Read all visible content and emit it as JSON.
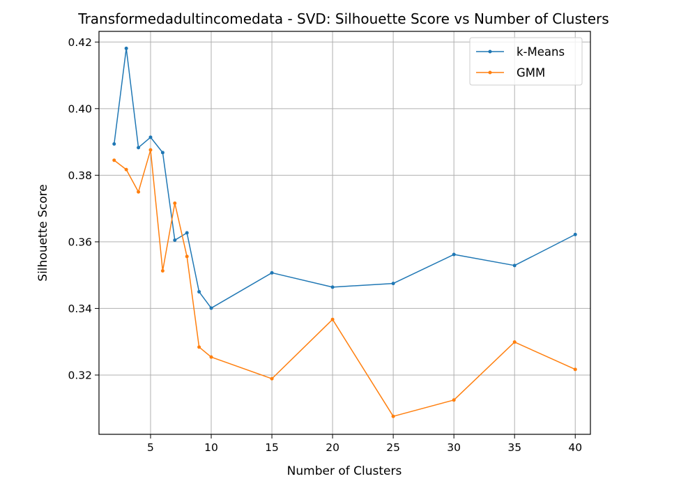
{
  "chart_data": {
    "type": "line",
    "title": "Transformedadultincomedata - SVD: Silhouette Score vs Number of Clusters",
    "xlabel": "Number of Clusters",
    "ylabel": "Silhouette Score",
    "x": [
      2,
      3,
      4,
      5,
      6,
      7,
      8,
      9,
      10,
      15,
      20,
      25,
      30,
      35,
      40
    ],
    "xlim": [
      0.75,
      41.25
    ],
    "ylim": [
      0.3022,
      0.4232
    ],
    "xticks": [
      5,
      10,
      15,
      20,
      25,
      30,
      35,
      40
    ],
    "yticks": [
      0.32,
      0.34,
      0.36,
      0.38,
      0.4,
      0.42
    ],
    "ytick_labels": [
      "0.32",
      "0.34",
      "0.36",
      "0.38",
      "0.40",
      "0.42"
    ],
    "grid": true,
    "legend_position": "top-right",
    "series": [
      {
        "name": "k-Means",
        "color": "#1f77b4",
        "values": [
          0.3894,
          0.4181,
          0.3883,
          0.3914,
          0.3868,
          0.3605,
          0.3627,
          0.345,
          0.3401,
          0.3507,
          0.3464,
          0.3475,
          0.3562,
          0.3529,
          0.3622
        ]
      },
      {
        "name": "GMM",
        "color": "#ff7f0e",
        "values": [
          0.3845,
          0.3817,
          0.375,
          0.3876,
          0.3513,
          0.3716,
          0.3556,
          0.3284,
          0.3254,
          0.3189,
          0.3367,
          0.3076,
          0.3125,
          0.3299,
          0.3217
        ]
      }
    ]
  }
}
